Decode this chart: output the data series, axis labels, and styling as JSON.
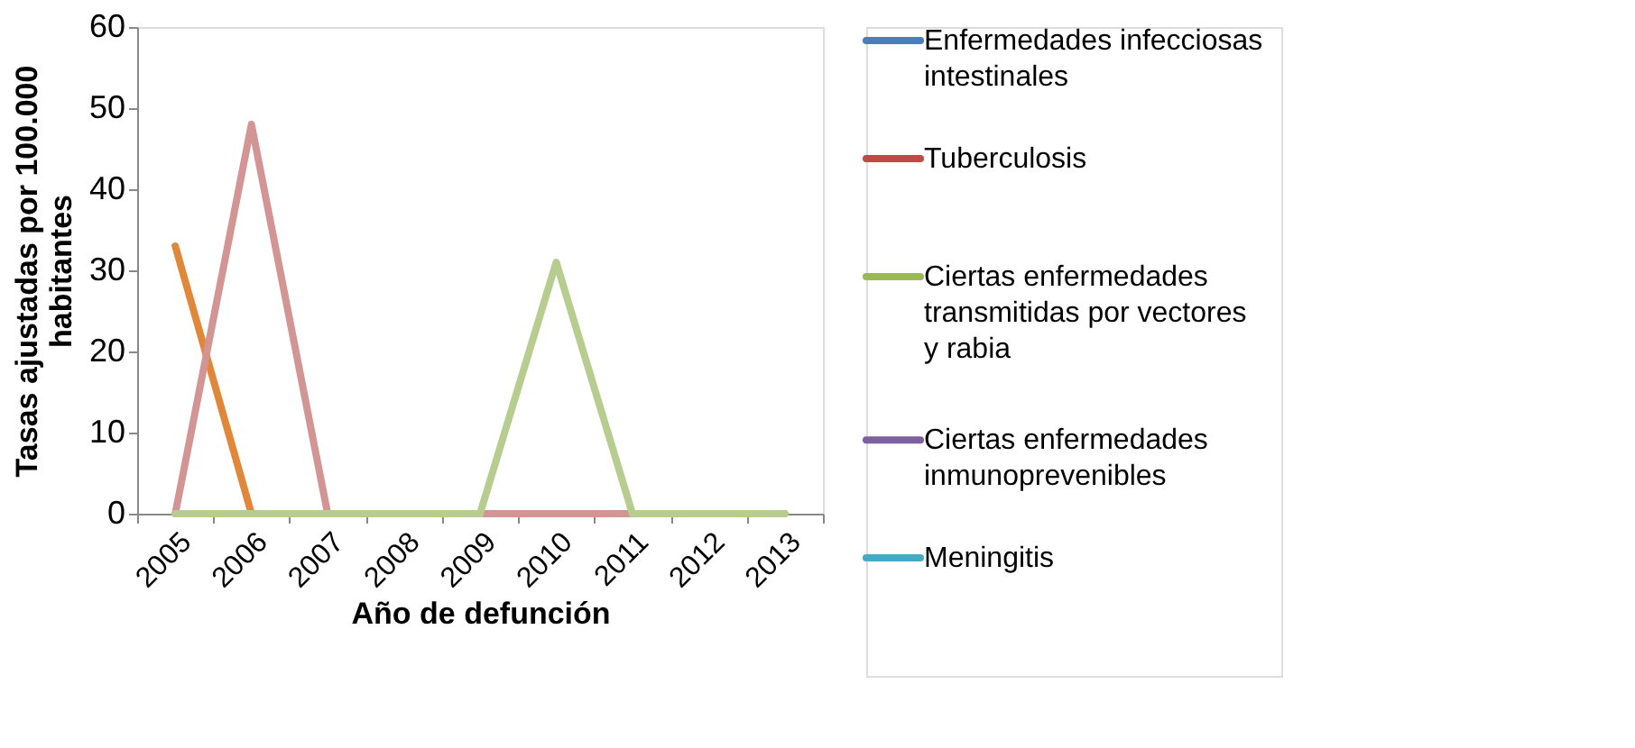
{
  "chart_data": {
    "type": "line",
    "xlabel": "Año de defunción",
    "ylabel": "Tasas ajustadas por 100.000 habitantes",
    "categories": [
      "2005",
      "2006",
      "2007",
      "2008",
      "2009",
      "2010",
      "2011",
      "2012",
      "2013"
    ],
    "ylim": [
      0,
      60
    ],
    "yticks": [
      0,
      10,
      20,
      30,
      40,
      50,
      60
    ],
    "grid": false,
    "legend": "right",
    "marker": "none",
    "line_style": "solid",
    "series": [
      {
        "name": "Enfermedades infecciosas intestinales",
        "color": "#4a7ebb",
        "values": [
          null,
          null,
          null,
          null,
          null,
          null,
          null,
          null,
          null
        ]
      },
      {
        "name": "Tuberculosis",
        "color": "#be4b48",
        "values": [
          null,
          null,
          null,
          null,
          null,
          null,
          null,
          null,
          null
        ]
      },
      {
        "name": "Ciertas enfermedades transmitidas por vectores y rabia",
        "color": "#98b954",
        "values": [
          null,
          null,
          null,
          null,
          null,
          null,
          null,
          null,
          null
        ]
      },
      {
        "name": "Ciertas enfermedades inmunoprevenibles",
        "color": "#7d60a0",
        "values": [
          null,
          null,
          null,
          null,
          null,
          null,
          null,
          null,
          null
        ]
      },
      {
        "name": "Meningitis",
        "color": "#46aac5",
        "values": [
          null,
          null,
          null,
          null,
          null,
          null,
          null,
          null,
          null
        ]
      },
      {
        "color": "#e0873a",
        "values": [
          33,
          0,
          null,
          null,
          null,
          null,
          null,
          null,
          null
        ]
      },
      {
        "color": "#d39593",
        "values": [
          0,
          48,
          0,
          0,
          0,
          0,
          0,
          0,
          0
        ]
      },
      {
        "color": "#b6cd8f",
        "values": [
          0,
          0,
          0,
          0,
          0,
          31,
          0,
          0,
          0
        ]
      }
    ]
  }
}
